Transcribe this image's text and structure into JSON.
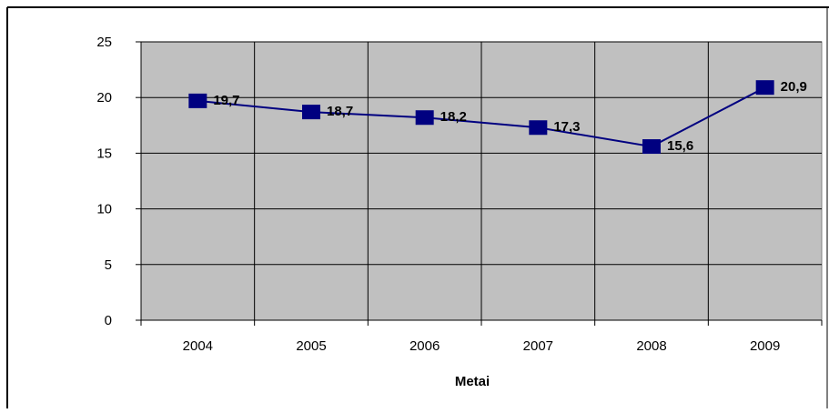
{
  "chart_data": {
    "type": "line",
    "title": "",
    "xlabel": "Metai",
    "ylabel": "",
    "categories": [
      "2004",
      "2005",
      "2006",
      "2007",
      "2008",
      "2009"
    ],
    "series": [
      {
        "values": [
          19.7,
          18.7,
          18.2,
          17.3,
          15.6,
          20.9
        ],
        "labels": [
          "19,7",
          "18,7",
          "18,2",
          "17,3",
          "15,6",
          "20,9"
        ],
        "color": "#000080",
        "marker": "square"
      }
    ],
    "ylim": [
      0,
      25
    ],
    "yticks": [
      0,
      5,
      10,
      15,
      20,
      25
    ],
    "grid": true,
    "legend": "none",
    "plot_background": "#c0c0c0",
    "gridline_color": "#000000"
  }
}
